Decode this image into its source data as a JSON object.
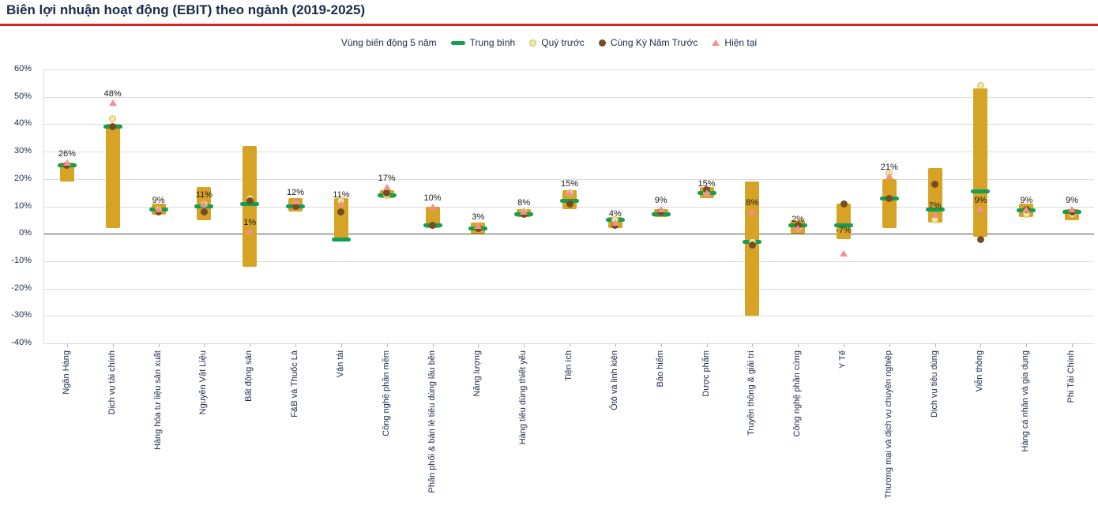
{
  "header": {
    "title": "Biên lợi nhuận hoạt động (EBIT) theo ngành (2019-2025)"
  },
  "legend": {
    "range_label": "Vùng biến động 5 năm",
    "items": [
      {
        "label": "Trung bình",
        "marker": "dash"
      },
      {
        "label": "Quý trước",
        "marker": "dot"
      },
      {
        "label": "Cùng Kỳ Năm Trước",
        "marker": "dot"
      },
      {
        "label": "Hiện tại",
        "marker": "triangle"
      }
    ]
  },
  "colors": {
    "range_bar": "#D7A324",
    "mean": "#129E53",
    "prev_quarter": "#EFE79C",
    "yoy": "#754C24",
    "current": "#F0918D",
    "text": "#1A2B4C",
    "divider": "#E0201F",
    "grid": "#DCDCDC",
    "zero_line": "#4D4D4D",
    "value_label": "#1A1A1A"
  },
  "chart_data": {
    "type": "bar",
    "title": "Biên lợi nhuận hoạt động (EBIT) theo ngành (2019-2025)",
    "xlabel": "",
    "ylabel": "",
    "ylim": [
      -40,
      60
    ],
    "ytick_step": 10,
    "grid": "horizontal",
    "legend_position": "top",
    "categories": [
      "Ngân Hàng",
      "Dịch vụ tài chính",
      "Hàng hóa tư liệu sản xuất",
      "Nguyên Vật Liệu",
      "Bất động sản",
      "F&B và Thuốc Lá",
      "Vận tải",
      "Công nghệ phần mềm",
      "Phân phối & bán lẻ tiêu dùng lâu bền",
      "Năng lượng",
      "Hàng tiêu dùng thiết yếu",
      "Tiện ích",
      "Ôtô và linh kiện",
      "Bảo hiểm",
      "Dược phẩm",
      "Truyền thông & giải trí",
      "Công nghệ phần cứng",
      "Y Tế",
      "Thương mại và dịch vụ chuyên nghiệp",
      "Dịch vụ tiêu dùng",
      "Viễn thông",
      "Hàng cá nhân và gia dụng",
      "Phi Tài Chính"
    ],
    "series": [
      {
        "name": "Vùng biến động 5 năm",
        "type": "range",
        "low": [
          19,
          2,
          7,
          5,
          -12,
          8,
          -2,
          13,
          2,
          0,
          6,
          9,
          2,
          6,
          13,
          -30,
          0,
          -2,
          2,
          4,
          -1,
          6,
          5
        ],
        "high": [
          26,
          40,
          11,
          17,
          32,
          13,
          13,
          16,
          10,
          4,
          9,
          16,
          6,
          9,
          17,
          19,
          5,
          11,
          20,
          24,
          53,
          11,
          9
        ]
      },
      {
        "name": "Trung bình",
        "type": "dash",
        "values": [
          25,
          39,
          9,
          10,
          11,
          10,
          -2,
          14,
          3,
          2,
          7,
          12,
          5,
          7,
          15,
          -3,
          3,
          3,
          13,
          9,
          15.5,
          8.5,
          8
        ]
      },
      {
        "name": "Quý trước",
        "type": "dot",
        "values": [
          25,
          42,
          9,
          11,
          13,
          11,
          12,
          14,
          3,
          2,
          8,
          15,
          5,
          8,
          15,
          -3,
          2,
          11,
          22,
          5,
          54,
          7,
          7
        ]
      },
      {
        "name": "Cùng Kỳ Năm Trước",
        "type": "dot",
        "values": [
          25,
          39,
          8,
          8,
          12,
          10,
          8,
          15,
          3,
          2,
          7,
          11,
          3,
          8,
          16,
          -4,
          3,
          11,
          13,
          18,
          -2,
          9,
          8
        ]
      },
      {
        "name": "Hiện tại",
        "type": "triangle",
        "values": [
          26,
          48,
          9,
          11,
          1,
          12,
          11,
          17,
          10,
          3,
          8,
          15,
          4,
          9,
          15,
          8,
          2,
          -7,
          21,
          7,
          9,
          9,
          9
        ]
      }
    ],
    "value_labels": [
      "26%",
      "48%",
      "9%",
      "11%",
      "1%",
      "12%",
      "11%",
      "17%",
      "10%",
      "3%",
      "8%",
      "15%",
      "4%",
      "9%",
      "15%",
      "8%",
      "2%",
      "-7%",
      "21%",
      "7%",
      "9%",
      "9%",
      "9%"
    ]
  }
}
